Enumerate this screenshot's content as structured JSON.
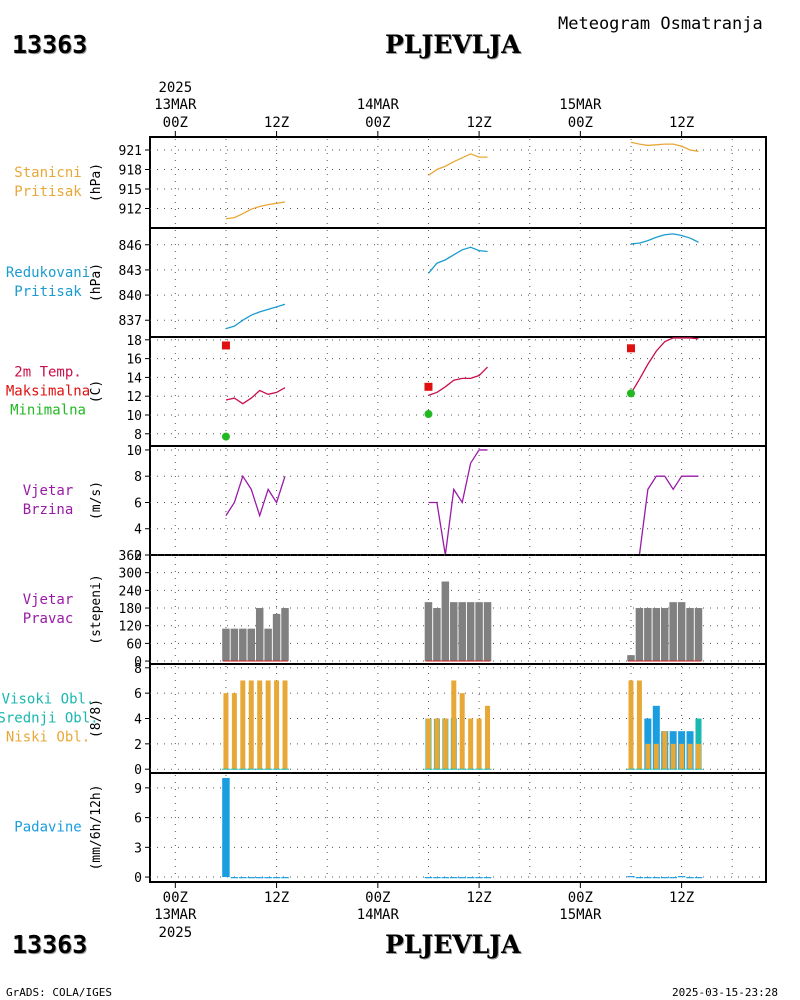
{
  "header": {
    "station_id": "13363",
    "station_name": "PLJEVLJA",
    "subtitle": "Meteogram Osmatranja"
  },
  "footer": {
    "left": "GrADS: COLA/IGES",
    "right": "2025-03-15-23:28"
  },
  "time_axis": {
    "year_label": "2025",
    "ticks": [
      {
        "hour": 0,
        "top": "00Z",
        "date": "13MAR"
      },
      {
        "hour": 12,
        "top": "12Z",
        "date": ""
      },
      {
        "hour": 24,
        "top": "00Z",
        "date": "14MAR"
      },
      {
        "hour": 36,
        "top": "12Z",
        "date": ""
      },
      {
        "hour": 48,
        "top": "00Z",
        "date": "15MAR"
      },
      {
        "hour": 60,
        "top": "12Z",
        "date": ""
      }
    ],
    "range_hours": [
      -3,
      70
    ]
  },
  "chart_data": [
    {
      "id": "station-pressure",
      "type": "line",
      "left_labels": [
        "Stanicni",
        "Pritisak"
      ],
      "label_colors": [
        "#e8a838",
        "#e8a838"
      ],
      "ylabel": "(hPa)",
      "ylim": [
        909,
        923
      ],
      "yticks": [
        912,
        915,
        918,
        921
      ],
      "series": [
        {
          "color": "#e8a838",
          "x": [
            6,
            7,
            8,
            9,
            10,
            11,
            12,
            13
          ],
          "y": [
            910.4,
            910.6,
            911.2,
            911.9,
            912.3,
            912.6,
            912.8,
            913.0
          ]
        },
        {
          "color": "#e8a838",
          "x": [
            30,
            31,
            32,
            33,
            34,
            35,
            36,
            37
          ],
          "y": [
            917.1,
            918.0,
            918.5,
            919.2,
            919.8,
            920.4,
            919.9,
            919.9
          ]
        },
        {
          "color": "#e8a838",
          "x": [
            54,
            55,
            56,
            57,
            58,
            59,
            60,
            61,
            62
          ],
          "y": [
            922.2,
            921.9,
            921.7,
            921.8,
            921.9,
            921.9,
            921.6,
            921.0,
            920.8
          ]
        }
      ]
    },
    {
      "id": "reduced-pressure",
      "type": "line",
      "left_labels": [
        "Redukovani",
        "Pritisak"
      ],
      "label_colors": [
        "#1a9cd0",
        "#1a9cd0"
      ],
      "ylabel": "(hPa)",
      "ylim": [
        835,
        848
      ],
      "yticks": [
        837,
        840,
        843,
        846
      ],
      "series": [
        {
          "color": "#1a9cd0",
          "x": [
            6,
            7,
            8,
            9,
            10,
            11,
            12,
            13
          ],
          "y": [
            836.0,
            836.3,
            837.0,
            837.6,
            838.0,
            838.3,
            838.6,
            838.9
          ]
        },
        {
          "color": "#1a9cd0",
          "x": [
            30,
            31,
            32,
            33,
            34,
            35,
            36,
            37
          ],
          "y": [
            842.6,
            843.8,
            844.2,
            844.8,
            845.4,
            845.7,
            845.3,
            845.2
          ]
        },
        {
          "color": "#1a9cd0",
          "x": [
            54,
            55,
            56,
            57,
            58,
            59,
            60,
            61,
            62
          ],
          "y": [
            846.1,
            846.2,
            846.5,
            846.9,
            847.2,
            847.3,
            847.1,
            846.8,
            846.3
          ]
        }
      ]
    },
    {
      "id": "temperature",
      "type": "line",
      "left_labels": [
        "2m Temp.",
        "Maksimalna",
        "Minimalna"
      ],
      "label_colors": [
        "#c8104a",
        "#e01010",
        "#22b822"
      ],
      "ylabel": "(C)",
      "ylim": [
        6.7,
        18.3
      ],
      "yticks": [
        8,
        10,
        12,
        14,
        16,
        18
      ],
      "series": [
        {
          "color": "#c8104a",
          "x": [
            6,
            7,
            8,
            9,
            10,
            11,
            12,
            13
          ],
          "y": [
            11.6,
            11.8,
            11.2,
            11.8,
            12.6,
            12.2,
            12.4,
            12.9
          ]
        },
        {
          "color": "#c8104a",
          "x": [
            30,
            31,
            32,
            33,
            34,
            35,
            36,
            37
          ],
          "y": [
            12.1,
            12.4,
            13.0,
            13.7,
            13.9,
            13.9,
            14.2,
            15.1
          ]
        },
        {
          "color": "#c8104a",
          "x": [
            54,
            55,
            56,
            57,
            58,
            59,
            60,
            61,
            62
          ],
          "y": [
            12.3,
            13.8,
            15.4,
            16.8,
            17.8,
            18.2,
            18.2,
            18.2,
            18.1
          ]
        }
      ],
      "markers": [
        {
          "kind": "max",
          "color": "#e01010",
          "shape": "square",
          "points": [
            [
              6,
              17.4
            ],
            [
              30,
              13.0
            ],
            [
              54,
              17.1
            ]
          ]
        },
        {
          "kind": "min",
          "color": "#22b822",
          "shape": "circle",
          "points": [
            [
              6,
              7.7
            ],
            [
              30,
              10.1
            ],
            [
              54,
              12.3
            ]
          ]
        }
      ]
    },
    {
      "id": "wind-speed",
      "type": "line",
      "left_labels": [
        "Vjetar",
        "Brzina"
      ],
      "label_colors": [
        "#9a1aa8",
        "#9a1aa8"
      ],
      "ylabel": "(m/s)",
      "ylim": [
        2,
        10.3
      ],
      "yticks": [
        2,
        4,
        6,
        8,
        10
      ],
      "series": [
        {
          "color": "#9a1aa8",
          "x": [
            6,
            7,
            8,
            9,
            10,
            11,
            12,
            13
          ],
          "y": [
            5,
            6,
            8,
            7,
            5,
            7,
            6,
            8
          ]
        },
        {
          "color": "#9a1aa8",
          "x": [
            30,
            31,
            32,
            33,
            34,
            35,
            36,
            37
          ],
          "y": [
            6,
            6,
            2,
            7,
            6,
            9,
            10,
            10
          ]
        },
        {
          "color": "#9a1aa8",
          "x": [
            54,
            55,
            56,
            57,
            58,
            59,
            60,
            61,
            62
          ],
          "y": [
            2,
            2,
            7,
            8,
            8,
            7,
            8,
            8,
            8
          ]
        }
      ]
    },
    {
      "id": "wind-direction",
      "type": "bar",
      "left_labels": [
        "Vjetar",
        "Pravac"
      ],
      "label_colors": [
        "#9a1aa8",
        "#9a1aa8"
      ],
      "ylabel": "(stepeni)",
      "ylim": [
        -10,
        360
      ],
      "yticks": [
        0,
        60,
        120,
        180,
        240,
        300,
        360
      ],
      "series": [
        {
          "color": "#808080",
          "x": [
            6,
            7,
            8,
            9,
            10,
            11,
            12,
            13
          ],
          "y": [
            110,
            110,
            110,
            110,
            180,
            110,
            160,
            180
          ]
        },
        {
          "color": "#808080",
          "x": [
            30,
            31,
            32,
            33,
            34,
            35,
            36,
            37
          ],
          "y": [
            200,
            180,
            270,
            200,
            200,
            200,
            200,
            200
          ]
        },
        {
          "color": "#808080",
          "x": [
            54,
            55,
            56,
            57,
            58,
            59,
            60,
            61,
            62
          ],
          "y": [
            20,
            180,
            180,
            180,
            180,
            200,
            200,
            180,
            180
          ]
        }
      ],
      "baseline_color": "#cc2222"
    },
    {
      "id": "cloud-cover",
      "type": "bar",
      "left_labels": [
        "Visoki Obl.",
        "Srednji Obl.",
        "Niski Obl."
      ],
      "label_colors": [
        "#19b8b0",
        "#19b8b0",
        "#e8a838"
      ],
      "ylabel": "(8/8)",
      "ylim": [
        -0.3,
        8.3
      ],
      "yticks": [
        0,
        2,
        4,
        6,
        8
      ],
      "series": [
        {
          "name": "Visoki Obl.",
          "color": "#19b8b0",
          "x": [
            6,
            7,
            8,
            9,
            10,
            11,
            12,
            13,
            30,
            31,
            32,
            33,
            34,
            35,
            36,
            37,
            54,
            55,
            56,
            57,
            58,
            59,
            60,
            61,
            62
          ],
          "y": [
            0,
            0,
            0,
            0,
            0,
            0,
            0,
            0,
            4,
            4,
            4,
            4,
            0,
            0,
            0,
            0,
            0,
            0,
            0,
            0,
            0,
            0,
            0,
            0,
            4
          ]
        },
        {
          "name": "Srednji Obl.",
          "color": "#1a9ee0",
          "x": [
            6,
            7,
            8,
            9,
            10,
            11,
            12,
            13,
            30,
            31,
            32,
            33,
            34,
            35,
            36,
            37,
            54,
            55,
            56,
            57,
            58,
            59,
            60,
            61,
            62
          ],
          "y": [
            0,
            0,
            0,
            0,
            0,
            0,
            0,
            0,
            0,
            0,
            0,
            0,
            0,
            0,
            0,
            0,
            0,
            0,
            4,
            5,
            3,
            3,
            3,
            3,
            0
          ]
        },
        {
          "name": "Niski Obl.",
          "color": "#e8a838",
          "x": [
            6,
            7,
            8,
            9,
            10,
            11,
            12,
            13,
            30,
            31,
            32,
            33,
            34,
            35,
            36,
            37,
            54,
            55,
            56,
            57,
            58,
            59,
            60,
            61,
            62
          ],
          "y": [
            6,
            6,
            7,
            7,
            7,
            7,
            7,
            7,
            4,
            4,
            4,
            7,
            6,
            4,
            4,
            5,
            7,
            7,
            2,
            2,
            3,
            2,
            2,
            2,
            2
          ]
        }
      ]
    },
    {
      "id": "precipitation",
      "type": "bar",
      "left_labels": [
        "Padavine"
      ],
      "label_colors": [
        "#1a9ee0"
      ],
      "ylabel": "(mm/6h/12h)",
      "ylim": [
        -0.5,
        10.5
      ],
      "yticks": [
        0,
        3,
        6,
        9
      ],
      "series": [
        {
          "color": "#1a9ee0",
          "x": [
            6,
            7,
            8,
            9,
            10,
            11,
            12,
            13,
            30,
            31,
            32,
            33,
            34,
            35,
            36,
            37,
            54,
            55,
            56,
            57,
            58,
            59,
            60,
            61,
            62
          ],
          "y": [
            10,
            0,
            0,
            0,
            0,
            0,
            0,
            0,
            0,
            0,
            0,
            0,
            0,
            0,
            0,
            0,
            0.1,
            0,
            0,
            0,
            0,
            0,
            0.1,
            0,
            0
          ]
        }
      ]
    }
  ]
}
